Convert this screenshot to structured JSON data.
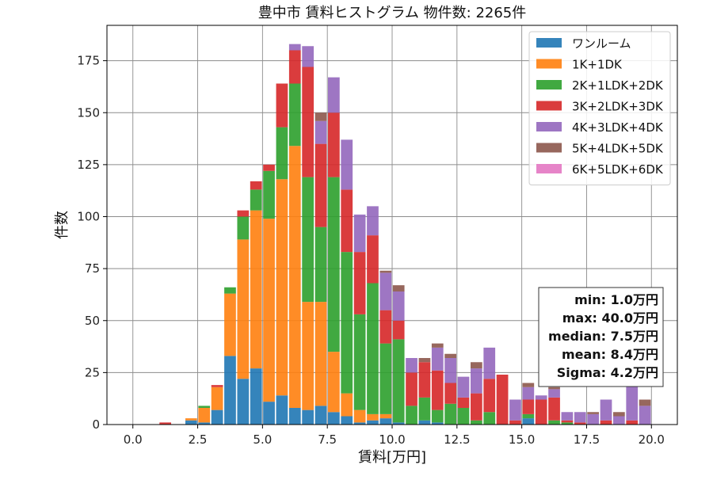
{
  "chart_data": {
    "type": "bar",
    "stacked": true,
    "title": "豊中市 賃料ヒストグラム 物件数: 2265件",
    "xlabel": "賃料[万円]",
    "ylabel": "件数",
    "xlim": [
      -1.0,
      21.0
    ],
    "ylim": [
      0,
      192
    ],
    "xticks": [
      0.0,
      2.5,
      5.0,
      7.5,
      10.0,
      12.5,
      15.0,
      17.5,
      20.0
    ],
    "xtick_labels": [
      "0.0",
      "2.5",
      "5.0",
      "7.5",
      "10.0",
      "12.5",
      "15.0",
      "17.5",
      "20.0"
    ],
    "yticks": [
      0,
      25,
      50,
      75,
      100,
      125,
      150,
      175
    ],
    "ytick_labels": [
      "0",
      "25",
      "50",
      "75",
      "100",
      "125",
      "150",
      "175"
    ],
    "grid": true,
    "legend_position": "top-right",
    "bin_width": 0.5,
    "bin_starts": [
      1.0,
      1.5,
      2.0,
      2.5,
      3.0,
      3.5,
      4.0,
      4.5,
      5.0,
      5.5,
      6.0,
      6.5,
      7.0,
      7.5,
      8.0,
      8.5,
      9.0,
      9.5,
      10.0,
      10.5,
      11.0,
      11.5,
      12.0,
      12.5,
      13.0,
      13.5,
      14.0,
      14.5,
      15.0,
      15.5,
      16.0,
      16.5,
      17.0,
      17.5,
      18.0,
      18.5,
      19.0,
      19.5
    ],
    "series": [
      {
        "name": "ワンルーム",
        "color": "#1f77b4",
        "values": [
          0,
          0,
          2,
          1,
          7,
          33,
          22,
          27,
          11,
          14,
          8,
          7,
          9,
          6,
          4,
          1,
          2,
          3,
          1,
          0,
          2,
          1,
          0,
          0,
          0,
          0,
          0,
          0,
          3,
          0,
          0,
          0,
          0,
          0,
          0,
          0,
          0,
          0
        ]
      },
      {
        "name": "1K+1DK",
        "color": "#ff7f0e",
        "values": [
          0,
          0,
          1,
          7,
          11,
          30,
          67,
          76,
          88,
          104,
          126,
          52,
          50,
          29,
          11,
          6,
          3,
          2,
          0,
          0,
          0,
          0,
          0,
          0,
          0,
          0,
          0,
          0,
          0,
          0,
          0,
          0,
          0,
          0,
          0,
          0,
          0,
          0
        ]
      },
      {
        "name": "2K+1LDK+2DK",
        "color": "#2ca02c",
        "values": [
          0,
          0,
          0,
          1,
          0,
          3,
          11,
          10,
          23,
          25,
          30,
          60,
          36,
          84,
          68,
          46,
          63,
          34,
          40,
          9,
          11,
          6,
          10,
          8,
          2,
          6,
          0,
          0,
          2,
          0,
          2,
          1,
          0,
          0,
          0,
          0,
          0,
          0
        ]
      },
      {
        "name": "3K+2LDK+3DK",
        "color": "#d62728",
        "values": [
          1,
          0,
          0,
          0,
          1,
          0,
          3,
          4,
          3,
          21,
          16,
          53,
          40,
          31,
          30,
          30,
          23,
          16,
          9,
          16,
          17,
          19,
          10,
          5,
          13,
          16,
          24,
          2,
          7,
          12,
          11,
          1,
          1,
          0,
          2,
          0,
          2,
          0
        ]
      },
      {
        "name": "4K+3LDK+4DK",
        "color": "#9467bd",
        "values": [
          0,
          0,
          0,
          0,
          0,
          0,
          0,
          0,
          0,
          0,
          3,
          10,
          11,
          17,
          24,
          18,
          14,
          18,
          14,
          7,
          0,
          11,
          12,
          10,
          12,
          15,
          0,
          10,
          6,
          2,
          4,
          4,
          5,
          5,
          10,
          4,
          17,
          9
        ]
      },
      {
        "name": "5K+4LDK+5DK",
        "color": "#8c564b",
        "values": [
          0,
          0,
          0,
          0,
          0,
          0,
          0,
          0,
          0,
          0,
          0,
          0,
          4,
          0,
          0,
          0,
          0,
          1,
          3,
          0,
          2,
          2,
          2,
          0,
          3,
          0,
          0,
          0,
          2,
          0,
          1,
          0,
          0,
          1,
          0,
          2,
          0,
          3
        ]
      },
      {
        "name": "6K+5LDK+6DK",
        "color": "#e377c2",
        "values": [
          0,
          0,
          0,
          0,
          0,
          0,
          0,
          0,
          0,
          0,
          0,
          0,
          0,
          0,
          0,
          0,
          0,
          0,
          0,
          0,
          0,
          0,
          0,
          0,
          0,
          0,
          0,
          0,
          0,
          0,
          0,
          0,
          0,
          0,
          0,
          0,
          0,
          0
        ]
      }
    ],
    "stats": [
      {
        "text": "min: 1.0万円"
      },
      {
        "text": "max: 40.0万円"
      },
      {
        "text": "median: 7.5万円"
      },
      {
        "text": "mean: 8.4万円"
      },
      {
        "text": "Sigma: 4.2万円"
      }
    ],
    "stats_position": "bottom-right"
  }
}
